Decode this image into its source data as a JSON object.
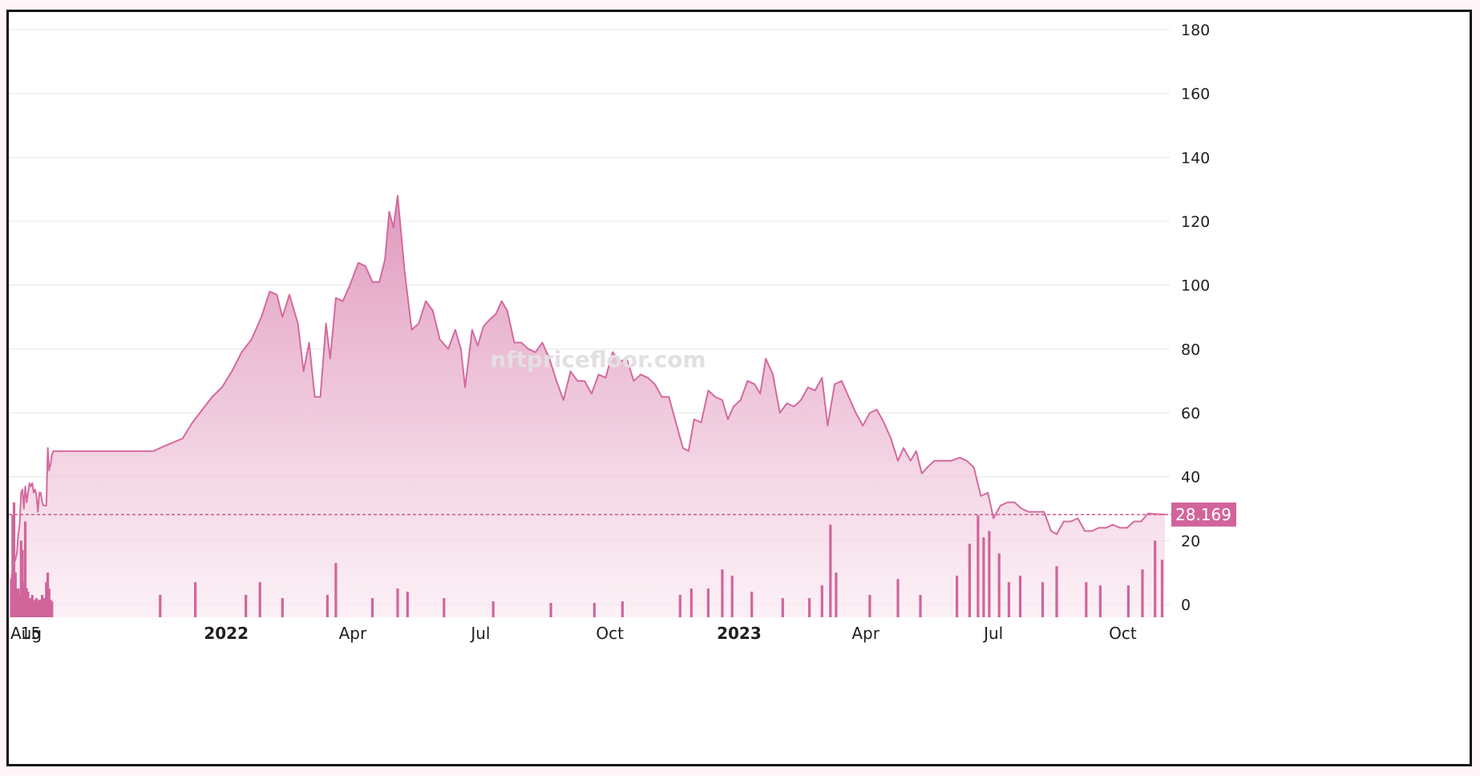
{
  "watermark": "nftpricefloor.com",
  "colors": {
    "line": "#d46a9f",
    "volume": "#d1659b",
    "fill_top": "#dc8db5",
    "fill_bottom": "#fbeaf2"
  },
  "chart_data": {
    "type": "area",
    "x_start": "2021-08-01",
    "x_end": "2023-10-31",
    "xticks": [
      {
        "label": "Aug",
        "date": "2021-08-01",
        "bold": false
      },
      {
        "label": "15",
        "date": "2021-08-15",
        "bold": false
      },
      {
        "label": "2022",
        "date": "2022-01-01",
        "bold": true
      },
      {
        "label": "Apr",
        "date": "2022-04-01",
        "bold": false
      },
      {
        "label": "Jul",
        "date": "2022-07-01",
        "bold": false
      },
      {
        "label": "Oct",
        "date": "2022-10-01",
        "bold": false
      },
      {
        "label": "2023",
        "date": "2023-01-01",
        "bold": true
      },
      {
        "label": "Apr",
        "date": "2023-04-01",
        "bold": false
      },
      {
        "label": "Jul",
        "date": "2023-07-01",
        "bold": false
      },
      {
        "label": "Oct",
        "date": "2023-10-01",
        "bold": false
      }
    ],
    "y_range": [
      -4,
      184
    ],
    "yticks": [
      0,
      20,
      40,
      60,
      80,
      100,
      120,
      140,
      160,
      180
    ],
    "last_value": "28.169",
    "series": [
      {
        "points": [
          [
            "2021-08-01",
            7
          ],
          [
            "2021-08-02",
            12
          ],
          [
            "2021-08-03",
            13
          ],
          [
            "2021-08-04",
            14
          ],
          [
            "2021-08-05",
            16
          ],
          [
            "2021-08-06",
            22
          ],
          [
            "2021-08-07",
            25
          ],
          [
            "2021-08-08",
            35
          ],
          [
            "2021-08-09",
            36
          ],
          [
            "2021-08-10",
            30
          ],
          [
            "2021-08-11",
            37
          ],
          [
            "2021-08-12",
            32
          ],
          [
            "2021-08-13",
            35
          ],
          [
            "2021-08-14",
            38
          ],
          [
            "2021-08-15",
            37
          ],
          [
            "2021-08-16",
            38
          ],
          [
            "2021-08-17",
            35
          ],
          [
            "2021-08-18",
            36
          ],
          [
            "2021-08-19",
            34
          ],
          [
            "2021-08-20",
            29
          ],
          [
            "2021-08-21",
            35
          ],
          [
            "2021-08-22",
            35
          ],
          [
            "2021-08-23",
            32
          ],
          [
            "2021-08-24",
            31
          ],
          [
            "2021-08-25",
            31
          ],
          [
            "2021-08-26",
            31
          ],
          [
            "2021-08-27",
            49
          ],
          [
            "2021-08-28",
            42
          ],
          [
            "2021-08-29",
            44
          ],
          [
            "2021-08-30",
            47
          ],
          [
            "2021-08-31",
            48
          ],
          [
            "2021-11-10",
            48
          ],
          [
            "2021-11-20",
            50
          ],
          [
            "2021-12-01",
            52
          ],
          [
            "2021-12-08",
            57
          ],
          [
            "2021-12-15",
            61
          ],
          [
            "2021-12-22",
            65
          ],
          [
            "2021-12-29",
            68
          ],
          [
            "2022-01-05",
            73
          ],
          [
            "2022-01-12",
            79
          ],
          [
            "2022-01-19",
            83
          ],
          [
            "2022-01-26",
            90
          ],
          [
            "2022-02-01",
            98
          ],
          [
            "2022-02-06",
            97
          ],
          [
            "2022-02-10",
            90
          ],
          [
            "2022-02-15",
            97
          ],
          [
            "2022-02-21",
            88
          ],
          [
            "2022-02-25",
            73
          ],
          [
            "2022-03-01",
            82
          ],
          [
            "2022-03-05",
            65
          ],
          [
            "2022-03-09",
            65
          ],
          [
            "2022-03-13",
            88
          ],
          [
            "2022-03-16",
            77
          ],
          [
            "2022-03-20",
            96
          ],
          [
            "2022-03-25",
            95
          ],
          [
            "2022-03-30",
            100
          ],
          [
            "2022-04-05",
            107
          ],
          [
            "2022-04-10",
            106
          ],
          [
            "2022-04-15",
            101
          ],
          [
            "2022-04-20",
            101
          ],
          [
            "2022-04-24",
            108
          ],
          [
            "2022-04-27",
            123
          ],
          [
            "2022-04-30",
            118
          ],
          [
            "2022-05-03",
            128
          ],
          [
            "2022-05-08",
            104
          ],
          [
            "2022-05-13",
            86
          ],
          [
            "2022-05-18",
            88
          ],
          [
            "2022-05-23",
            95
          ],
          [
            "2022-05-28",
            92
          ],
          [
            "2022-06-02",
            83
          ],
          [
            "2022-06-08",
            80
          ],
          [
            "2022-06-13",
            86
          ],
          [
            "2022-06-17",
            80
          ],
          [
            "2022-06-20",
            68
          ],
          [
            "2022-06-25",
            86
          ],
          [
            "2022-06-29",
            81
          ],
          [
            "2022-07-03",
            87
          ],
          [
            "2022-07-07",
            89
          ],
          [
            "2022-07-12",
            91
          ],
          [
            "2022-07-16",
            95
          ],
          [
            "2022-07-20",
            92
          ],
          [
            "2022-07-25",
            82
          ],
          [
            "2022-07-30",
            82
          ],
          [
            "2022-08-04",
            80
          ],
          [
            "2022-08-09",
            79
          ],
          [
            "2022-08-14",
            82
          ],
          [
            "2022-08-19",
            77
          ],
          [
            "2022-08-24",
            70
          ],
          [
            "2022-08-29",
            64
          ],
          [
            "2022-09-03",
            73
          ],
          [
            "2022-09-08",
            70
          ],
          [
            "2022-09-13",
            70
          ],
          [
            "2022-09-18",
            66
          ],
          [
            "2022-09-23",
            72
          ],
          [
            "2022-09-28",
            71
          ],
          [
            "2022-10-03",
            79
          ],
          [
            "2022-10-08",
            76
          ],
          [
            "2022-10-13",
            77
          ],
          [
            "2022-10-18",
            70
          ],
          [
            "2022-10-23",
            72
          ],
          [
            "2022-10-28",
            71
          ],
          [
            "2022-11-02",
            69
          ],
          [
            "2022-11-07",
            65
          ],
          [
            "2022-11-12",
            65
          ],
          [
            "2022-11-17",
            57
          ],
          [
            "2022-11-22",
            49
          ],
          [
            "2022-11-26",
            48
          ],
          [
            "2022-11-30",
            58
          ],
          [
            "2022-12-05",
            57
          ],
          [
            "2022-12-10",
            67
          ],
          [
            "2022-12-15",
            65
          ],
          [
            "2022-12-20",
            64
          ],
          [
            "2022-12-24",
            58
          ],
          [
            "2022-12-28",
            62
          ],
          [
            "2023-01-02",
            64
          ],
          [
            "2023-01-07",
            70
          ],
          [
            "2023-01-12",
            69
          ],
          [
            "2023-01-16",
            66
          ],
          [
            "2023-01-20",
            77
          ],
          [
            "2023-01-25",
            72
          ],
          [
            "2023-01-30",
            60
          ],
          [
            "2023-02-04",
            63
          ],
          [
            "2023-02-09",
            62
          ],
          [
            "2023-02-14",
            64
          ],
          [
            "2023-02-19",
            68
          ],
          [
            "2023-02-24",
            67
          ],
          [
            "2023-03-01",
            71
          ],
          [
            "2023-03-05",
            56
          ],
          [
            "2023-03-10",
            69
          ],
          [
            "2023-03-15",
            70
          ],
          [
            "2023-03-20",
            65
          ],
          [
            "2023-03-25",
            60
          ],
          [
            "2023-03-30",
            56
          ],
          [
            "2023-04-04",
            60
          ],
          [
            "2023-04-09",
            61
          ],
          [
            "2023-04-14",
            57
          ],
          [
            "2023-04-19",
            52
          ],
          [
            "2023-04-24",
            45
          ],
          [
            "2023-04-28",
            49
          ],
          [
            "2023-05-03",
            45
          ],
          [
            "2023-05-07",
            48
          ],
          [
            "2023-05-11",
            41
          ],
          [
            "2023-05-15",
            43
          ],
          [
            "2023-05-20",
            45
          ],
          [
            "2023-05-25",
            45
          ],
          [
            "2023-06-01",
            45
          ],
          [
            "2023-06-07",
            46
          ],
          [
            "2023-06-12",
            45
          ],
          [
            "2023-06-17",
            43
          ],
          [
            "2023-06-22",
            34
          ],
          [
            "2023-06-27",
            35
          ],
          [
            "2023-07-01",
            27
          ],
          [
            "2023-07-06",
            31
          ],
          [
            "2023-07-11",
            32
          ],
          [
            "2023-07-16",
            32
          ],
          [
            "2023-07-21",
            30
          ],
          [
            "2023-07-26",
            29
          ],
          [
            "2023-08-01",
            29
          ],
          [
            "2023-08-06",
            29
          ],
          [
            "2023-08-11",
            23
          ],
          [
            "2023-08-15",
            22
          ],
          [
            "2023-08-20",
            26
          ],
          [
            "2023-08-25",
            26
          ],
          [
            "2023-08-30",
            27
          ],
          [
            "2023-09-04",
            23
          ],
          [
            "2023-09-09",
            23
          ],
          [
            "2023-09-14",
            24
          ],
          [
            "2023-09-19",
            24
          ],
          [
            "2023-09-24",
            25
          ],
          [
            "2023-09-29",
            24
          ],
          [
            "2023-10-04",
            24
          ],
          [
            "2023-10-09",
            26
          ],
          [
            "2023-10-14",
            26
          ],
          [
            "2023-10-19",
            28.5
          ],
          [
            "2023-10-24",
            28.3
          ],
          [
            "2023-10-31",
            28.169
          ]
        ]
      },
      {
        "type": "bar",
        "points": [
          [
            "2021-08-01",
            8
          ],
          [
            "2021-08-02",
            28
          ],
          [
            "2021-08-03",
            32
          ],
          [
            "2021-08-04",
            10
          ],
          [
            "2021-08-05",
            5
          ],
          [
            "2021-08-06",
            5
          ],
          [
            "2021-08-07",
            3
          ],
          [
            "2021-08-08",
            20
          ],
          [
            "2021-08-09",
            17
          ],
          [
            "2021-08-10",
            7
          ],
          [
            "2021-08-11",
            26
          ],
          [
            "2021-08-12",
            5
          ],
          [
            "2021-08-13",
            4
          ],
          [
            "2021-08-14",
            2
          ],
          [
            "2021-08-15",
            2
          ],
          [
            "2021-08-16",
            3
          ],
          [
            "2021-08-17",
            1
          ],
          [
            "2021-08-18",
            1.5
          ],
          [
            "2021-08-19",
            2
          ],
          [
            "2021-08-20",
            1
          ],
          [
            "2021-08-21",
            1.5
          ],
          [
            "2021-08-22",
            1.5
          ],
          [
            "2021-08-23",
            3
          ],
          [
            "2021-08-24",
            2
          ],
          [
            "2021-08-25",
            2
          ],
          [
            "2021-08-26",
            7
          ],
          [
            "2021-08-27",
            10
          ],
          [
            "2021-08-28",
            5
          ],
          [
            "2021-08-29",
            1.5
          ],
          [
            "2021-08-30",
            1
          ],
          [
            "2021-11-15",
            3
          ],
          [
            "2021-12-10",
            7
          ],
          [
            "2022-01-15",
            3
          ],
          [
            "2022-01-25",
            7
          ],
          [
            "2022-02-10",
            2
          ],
          [
            "2022-03-14",
            3
          ],
          [
            "2022-03-20",
            13
          ],
          [
            "2022-04-15",
            2
          ],
          [
            "2022-05-03",
            5
          ],
          [
            "2022-05-10",
            4
          ],
          [
            "2022-06-05",
            2
          ],
          [
            "2022-07-10",
            1
          ],
          [
            "2022-08-20",
            0.5
          ],
          [
            "2022-09-20",
            0.5
          ],
          [
            "2022-10-10",
            1
          ],
          [
            "2022-11-20",
            3
          ],
          [
            "2022-11-28",
            5
          ],
          [
            "2022-12-10",
            5
          ],
          [
            "2022-12-20",
            11
          ],
          [
            "2022-12-27",
            9
          ],
          [
            "2023-01-10",
            4
          ],
          [
            "2023-02-01",
            2
          ],
          [
            "2023-02-20",
            2
          ],
          [
            "2023-03-01",
            6
          ],
          [
            "2023-03-07",
            25
          ],
          [
            "2023-03-11",
            10
          ],
          [
            "2023-04-04",
            3
          ],
          [
            "2023-04-24",
            8
          ],
          [
            "2023-05-10",
            3
          ],
          [
            "2023-06-05",
            9
          ],
          [
            "2023-06-14",
            19
          ],
          [
            "2023-06-20",
            28
          ],
          [
            "2023-06-24",
            21
          ],
          [
            "2023-06-28",
            23
          ],
          [
            "2023-07-05",
            16
          ],
          [
            "2023-07-12",
            7
          ],
          [
            "2023-07-20",
            9
          ],
          [
            "2023-08-05",
            7
          ],
          [
            "2023-08-15",
            12
          ],
          [
            "2023-09-05",
            7
          ],
          [
            "2023-09-15",
            6
          ],
          [
            "2023-10-05",
            6
          ],
          [
            "2023-10-15",
            11
          ],
          [
            "2023-10-24",
            20
          ],
          [
            "2023-10-29",
            14
          ]
        ]
      }
    ]
  }
}
